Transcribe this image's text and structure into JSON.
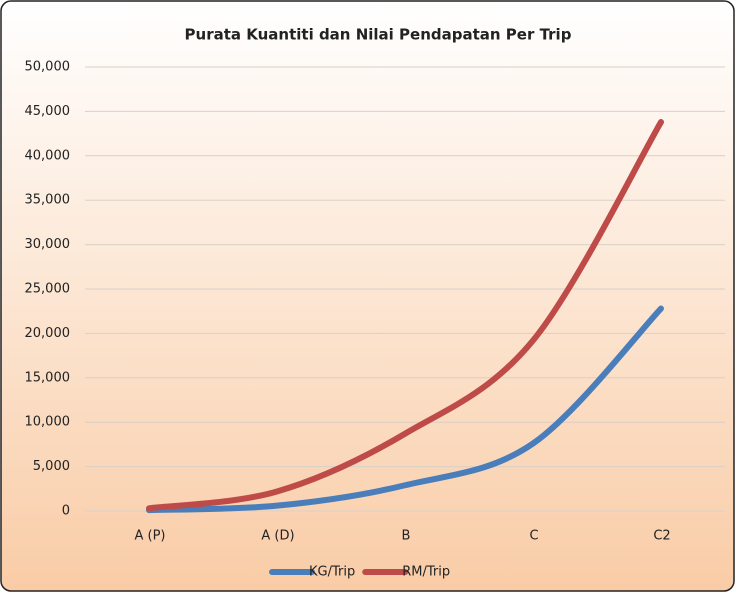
{
  "chart_data": {
    "type": "line",
    "title": "Purata Kuantiti dan Nilai Pendapatan Per Trip",
    "categories": [
      "A (P)",
      "A (D)",
      "B",
      "C",
      "C2"
    ],
    "series": [
      {
        "name": "KG/Trip",
        "color": "#4a7ebb",
        "values": [
          100,
          600,
          2900,
          7600,
          22800
        ]
      },
      {
        "name": "RM/Trip",
        "color": "#be4b48",
        "values": [
          300,
          2200,
          8700,
          19200,
          43800
        ]
      }
    ],
    "ylim": [
      0,
      50000
    ],
    "yticks": [
      0,
      {
        "value": 5000,
        "label": "5,000"
      },
      {
        "value": 10000,
        "label": "10,000"
      },
      {
        "value": 15000,
        "label": "15,000"
      },
      {
        "value": 20000,
        "label": "20,000"
      },
      {
        "value": 25000,
        "label": "25,000"
      },
      {
        "value": 30000,
        "label": "30,000"
      },
      {
        "value": 35000,
        "label": "35,000"
      },
      {
        "value": 40000,
        "label": "40,000"
      },
      {
        "value": 45000,
        "label": "45,000"
      },
      {
        "value": 50000,
        "label": "50,000"
      }
    ],
    "grid": true,
    "legend": "bottom"
  }
}
